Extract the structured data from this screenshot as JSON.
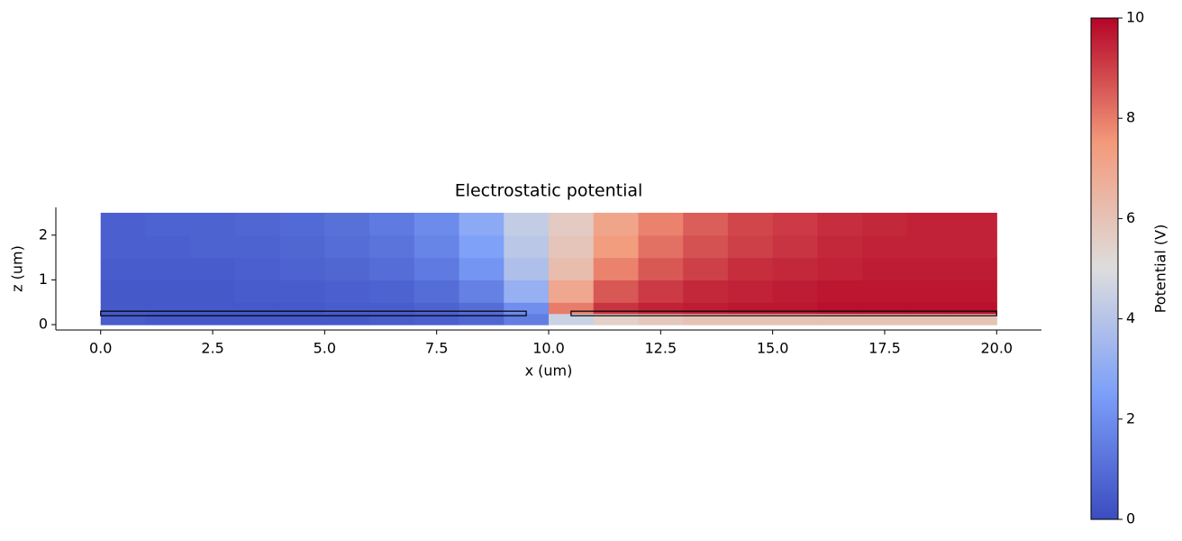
{
  "chart_data": {
    "type": "heatmap",
    "title": "Electrostatic potential",
    "xlabel": "x (um)",
    "ylabel": "z (um)",
    "colorbar_label": "Potential (V)",
    "colormap": "coolwarm",
    "x_edges": [
      0,
      1,
      2,
      3,
      4,
      5,
      6,
      7,
      8,
      9,
      10,
      11,
      12,
      13,
      14,
      15,
      16,
      17,
      18,
      19,
      20
    ],
    "z_edges": [
      0,
      0.25,
      0.5,
      1,
      1.5,
      2,
      2.5
    ],
    "values": [
      [
        0.5,
        0.4,
        0.4,
        0.4,
        0.4,
        0.4,
        0.5,
        0.6,
        0.8,
        1.5,
        4.5,
        5.5,
        5.8,
        6,
        6,
        6,
        6,
        6,
        6,
        6
      ],
      [
        0.4,
        0.4,
        0.4,
        0.4,
        0.4,
        0.5,
        0.5,
        0.7,
        1.0,
        2.0,
        8.0,
        9.2,
        9.5,
        9.6,
        9.7,
        9.7,
        9.8,
        9.8,
        9.8,
        9.8
      ],
      [
        0.4,
        0.4,
        0.4,
        0.5,
        0.5,
        0.6,
        0.7,
        1.0,
        1.6,
        3.2,
        7.0,
        8.6,
        9.1,
        9.4,
        9.5,
        9.6,
        9.7,
        9.7,
        9.7,
        9.7
      ],
      [
        0.5,
        0.5,
        0.5,
        0.6,
        0.7,
        0.8,
        1.0,
        1.4,
        2.2,
        3.8,
        6.2,
        7.9,
        8.6,
        9.0,
        9.3,
        9.4,
        9.5,
        9.6,
        9.6,
        9.6
      ],
      [
        0.6,
        0.6,
        0.7,
        0.7,
        0.8,
        1.0,
        1.2,
        1.7,
        2.6,
        4.1,
        5.9,
        7.4,
        8.2,
        8.7,
        9.0,
        9.2,
        9.4,
        9.5,
        9.5,
        9.5
      ],
      [
        0.6,
        0.7,
        0.7,
        0.8,
        0.9,
        1.1,
        1.4,
        1.9,
        2.9,
        4.3,
        5.7,
        7.1,
        7.9,
        8.5,
        8.9,
        9.1,
        9.3,
        9.4,
        9.5,
        9.5
      ]
    ],
    "electrodes": [
      {
        "x": [
          0,
          9.5
        ],
        "z": [
          0.2,
          0.3
        ]
      },
      {
        "x": [
          10.5,
          20
        ],
        "z": [
          0.2,
          0.3
        ]
      }
    ],
    "xlim": [
      -1,
      21
    ],
    "xticks": [
      {
        "value": 0,
        "label": "0.0"
      },
      2.5,
      {
        "value": 5,
        "label": "5.0"
      },
      7.5,
      {
        "value": 10,
        "label": "10.0"
      },
      12.5,
      {
        "value": 15,
        "label": "15.0"
      },
      17.5,
      {
        "value": 20,
        "label": "20.0"
      }
    ],
    "ylim": [
      -0.12,
      2.62
    ],
    "yticks": [
      0,
      1,
      2
    ],
    "clim": [
      0,
      10
    ],
    "cticks": [
      0,
      2,
      4,
      6,
      8,
      10
    ]
  }
}
